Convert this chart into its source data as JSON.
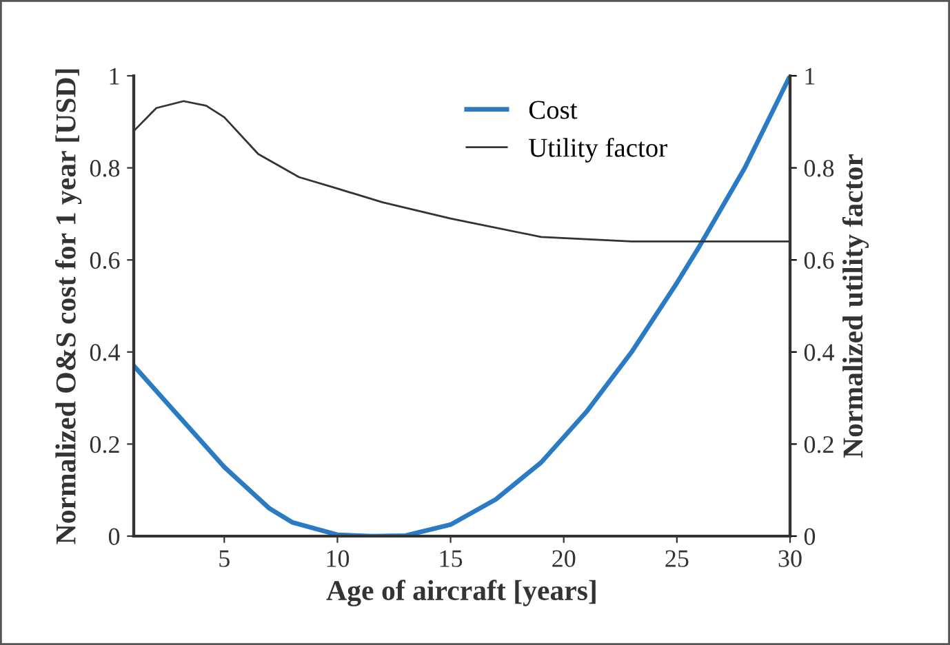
{
  "chart_data": {
    "type": "line",
    "xlabel": "Age of aircraft [years]",
    "ylabel": "Normalized O&S cost for 1 year [USD]",
    "y2label": "Normalized utility factor",
    "xlim": [
      1,
      30
    ],
    "xticks": [
      5,
      10,
      15,
      20,
      25,
      30
    ],
    "ylim": [
      0,
      1
    ],
    "yticks": [
      0,
      0.2,
      0.4,
      0.6,
      0.8,
      1
    ],
    "y2lim": [
      0,
      1
    ],
    "y2ticks": [
      0,
      0.2,
      0.4,
      0.6,
      0.8,
      1
    ],
    "grid": false,
    "legend": "top right",
    "marker": "none",
    "line_style": "solid",
    "series": [
      {
        "name": "Cost",
        "color": "#2a7bc4",
        "x": [
          1,
          3,
          5,
          7,
          8,
          10,
          11.5,
          13,
          15,
          17,
          19,
          21,
          23,
          25,
          26,
          28,
          30
        ],
        "values": [
          0.37,
          0.26,
          0.15,
          0.06,
          0.03,
          0.003,
          0,
          0.001,
          0.025,
          0.08,
          0.16,
          0.27,
          0.4,
          0.55,
          0.63,
          0.8,
          1.0
        ]
      },
      {
        "name": "Utility factor",
        "color": "#333333",
        "axis": "y2",
        "x": [
          1,
          2,
          3.2,
          4.2,
          5,
          6.5,
          8.3,
          10,
          12,
          15,
          19,
          23,
          30
        ],
        "values": [
          0.88,
          0.93,
          0.945,
          0.935,
          0.91,
          0.83,
          0.78,
          0.755,
          0.725,
          0.69,
          0.65,
          0.64,
          0.64
        ]
      }
    ]
  }
}
